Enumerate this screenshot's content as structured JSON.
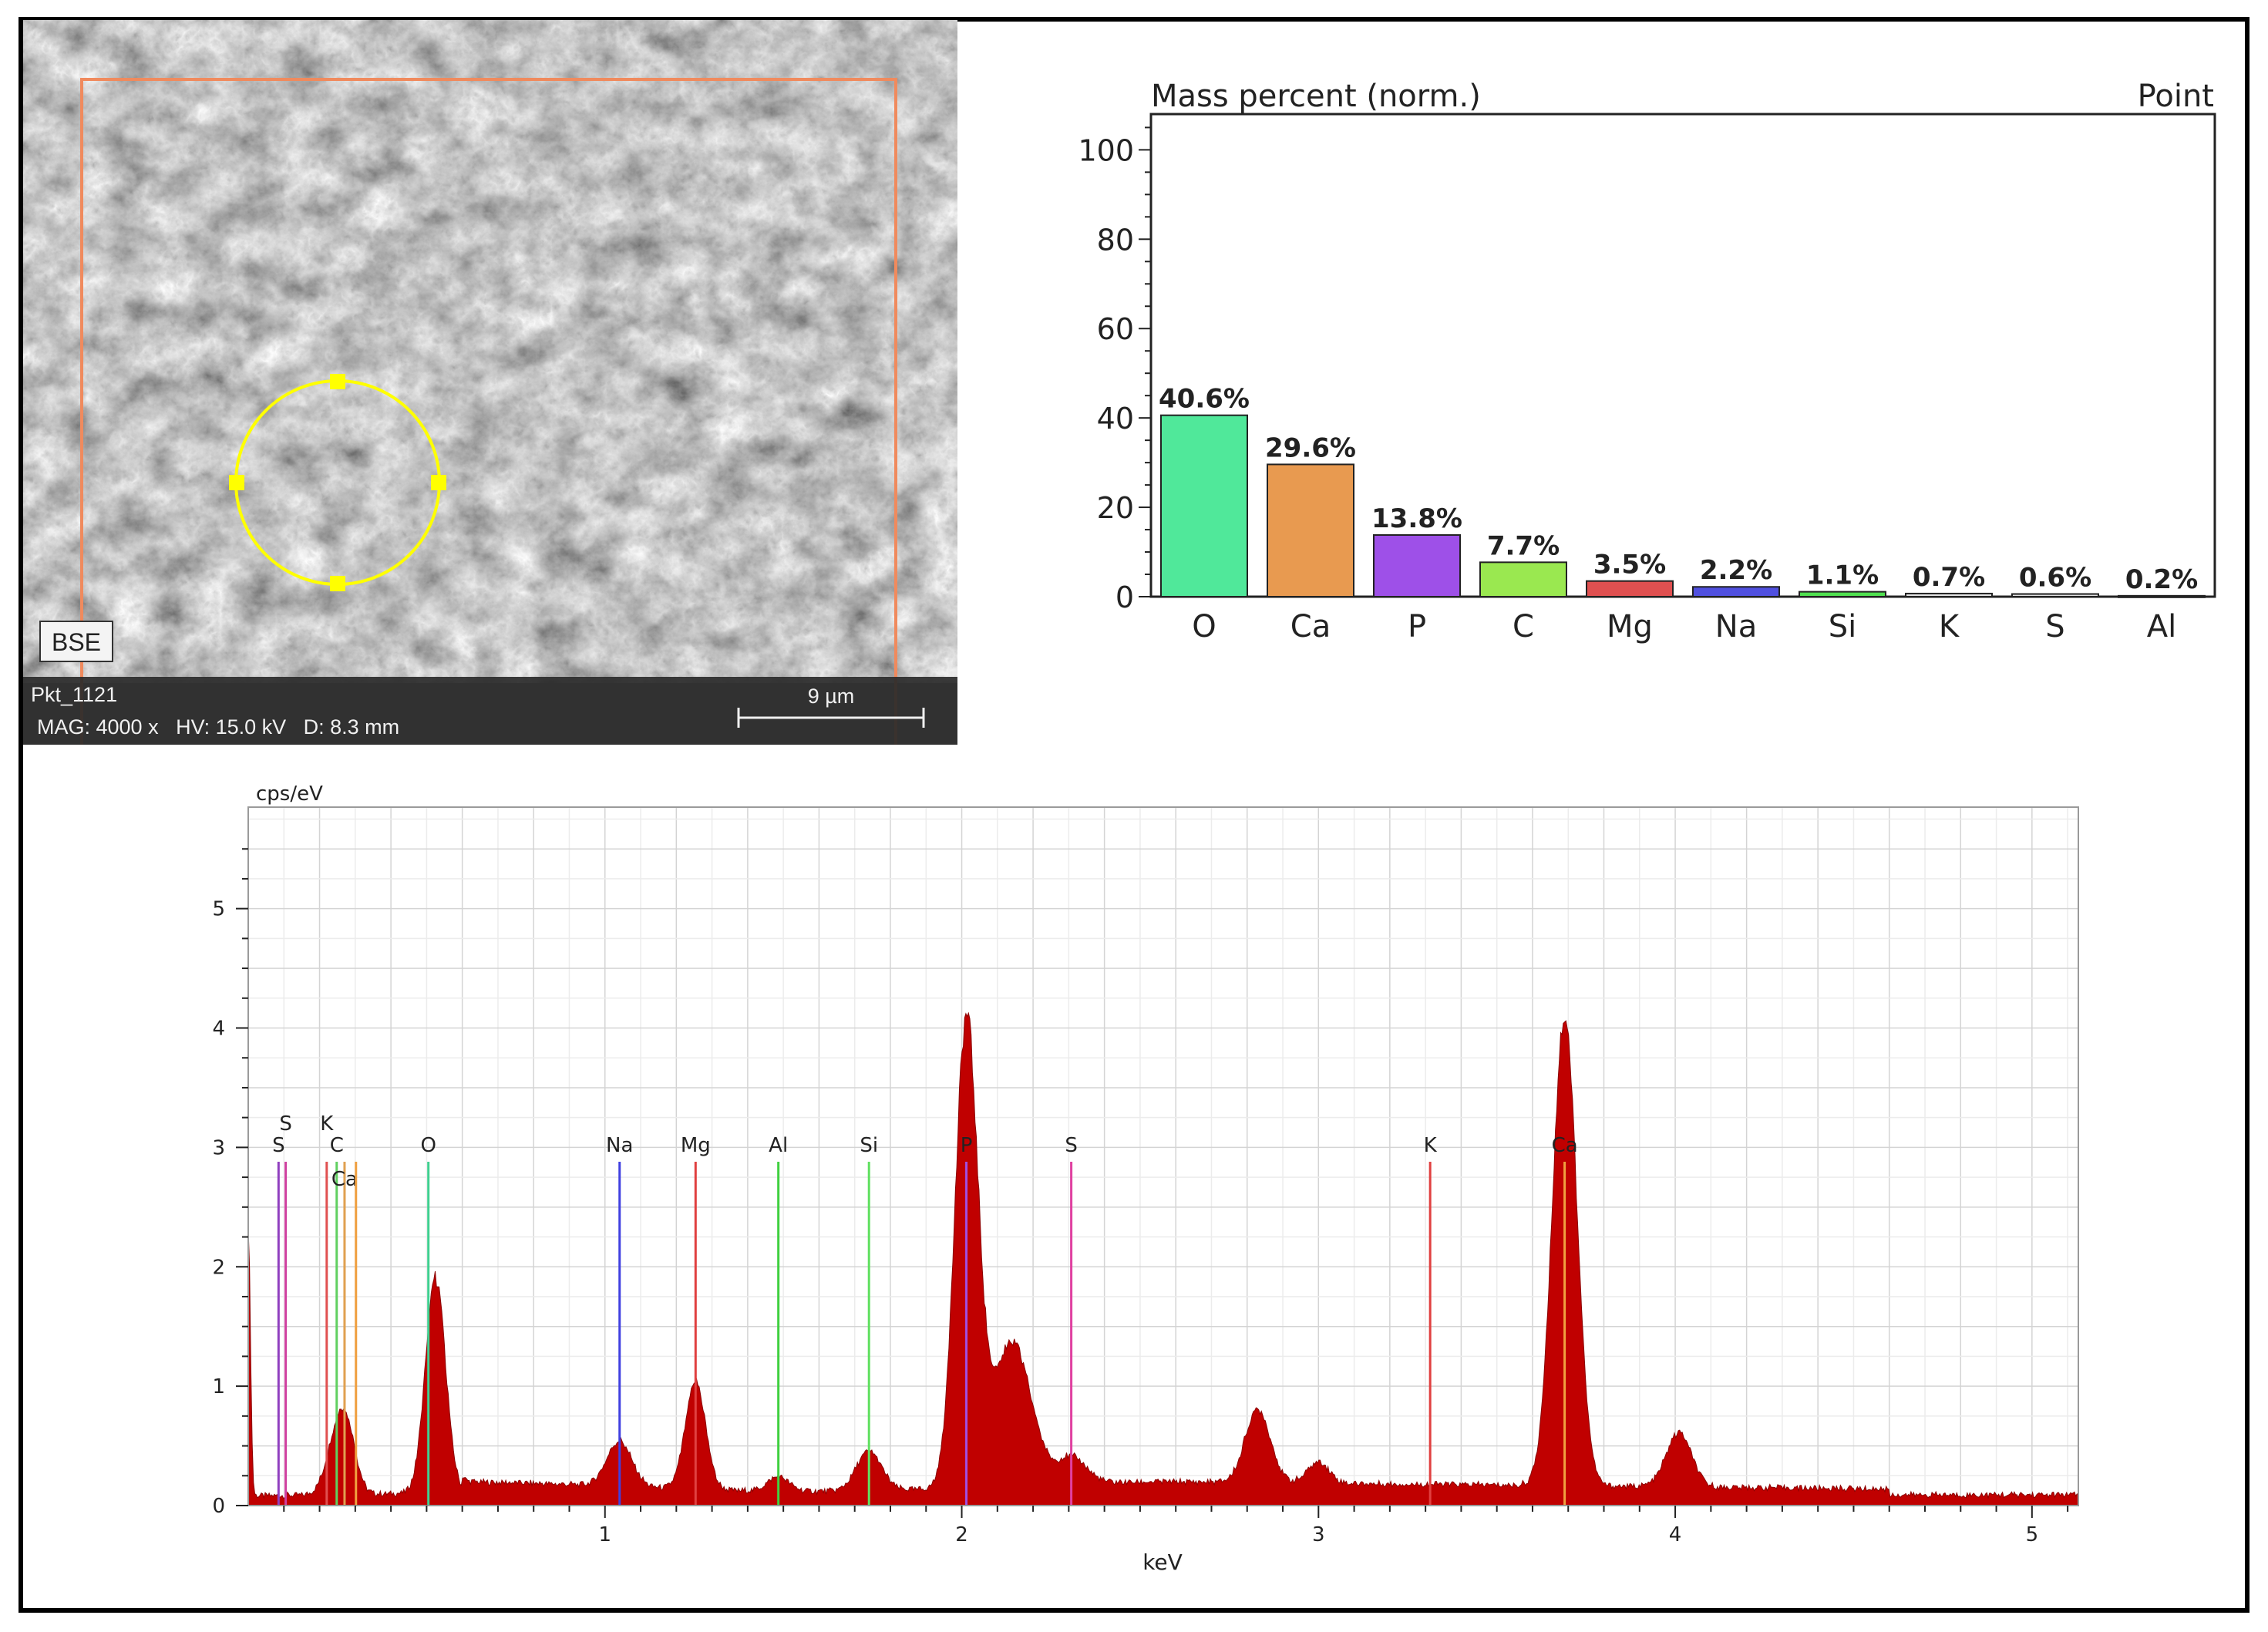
{
  "sem_image": {
    "detector_badge": "BSE",
    "point_name": "Pkt_1121",
    "info_line": "MAG: 4000 x   HV: 15.0 kV   D: 8.3 mm",
    "scale_bar_label": "9 µm",
    "colors": {
      "roi_rect": "#f08a5d",
      "point_circle": "#ffff00"
    }
  },
  "chart_data": [
    {
      "type": "bar",
      "title": "Mass percent (norm.)",
      "subtitle": "Point",
      "categories": [
        "O",
        "Ca",
        "P",
        "C",
        "Mg",
        "Na",
        "Si",
        "K",
        "S",
        "Al"
      ],
      "values": [
        40.6,
        29.6,
        13.8,
        7.7,
        3.5,
        2.2,
        1.1,
        0.7,
        0.6,
        0.2
      ],
      "data_labels": [
        "40.6%",
        "29.6%",
        "13.8%",
        "7.7%",
        "3.5%",
        "2.2%",
        "1.1%",
        "0.7%",
        "0.6%",
        "0.2%"
      ],
      "colors": [
        "#50e89a",
        "#e89a50",
        "#9e50e8",
        "#9ae850",
        "#e05050",
        "#5050e0",
        "#50e050",
        "#e0e0e0",
        "#e0e0e0",
        "#e0e0e0"
      ],
      "ylim": [
        0,
        108
      ],
      "yticks": [
        0,
        20,
        40,
        60,
        80,
        100
      ],
      "grid": false,
      "legend": "none"
    },
    {
      "type": "area",
      "ylabel": "cps/eV",
      "xlabel": "keV",
      "xlim": [
        0,
        5.13
      ],
      "ylim": [
        0,
        5.85
      ],
      "xticks": [
        1,
        2,
        3,
        4,
        5
      ],
      "yticks": [
        0,
        1,
        2,
        3,
        4,
        5
      ],
      "grid": true,
      "fill_color": "#c00000",
      "peaks": [
        {
          "x": 0.0,
          "height": 2.3,
          "width": 0.006
        },
        {
          "x": 0.25,
          "height": 0.5,
          "width": 0.03
        },
        {
          "x": 0.28,
          "height": 0.35,
          "width": 0.025
        },
        {
          "x": 0.525,
          "height": 1.8,
          "width": 0.028
        },
        {
          "x": 1.04,
          "height": 0.38,
          "width": 0.035
        },
        {
          "x": 1.254,
          "height": 0.9,
          "width": 0.028
        },
        {
          "x": 1.486,
          "height": 0.12,
          "width": 0.03
        },
        {
          "x": 1.74,
          "height": 0.33,
          "width": 0.035
        },
        {
          "x": 2.013,
          "height": 3.88,
          "width": 0.032
        },
        {
          "x": 2.14,
          "height": 1.2,
          "width": 0.055
        },
        {
          "x": 2.31,
          "height": 0.22,
          "width": 0.04
        },
        {
          "x": 2.83,
          "height": 0.62,
          "width": 0.035
        },
        {
          "x": 3.0,
          "height": 0.18,
          "width": 0.03
        },
        {
          "x": 3.69,
          "height": 3.95,
          "width": 0.034
        },
        {
          "x": 4.01,
          "height": 0.45,
          "width": 0.035
        }
      ],
      "element_lines": [
        {
          "label": "S",
          "x": 0.085,
          "color": "#9040c0",
          "label_row": 0
        },
        {
          "label": "S",
          "x": 0.105,
          "color": "#d040a0",
          "label_row": -1
        },
        {
          "label": "K",
          "x": 0.22,
          "color": "#e05050",
          "label_row": -1
        },
        {
          "label": "C",
          "x": 0.248,
          "color": "#60d060",
          "label_row": 0
        },
        {
          "label": "Ca",
          "x": 0.27,
          "color": "#e0a050",
          "label_row": 1
        },
        {
          "label": "",
          "x": 0.302,
          "color": "#f0a040",
          "label_row": -1
        },
        {
          "label": "O",
          "x": 0.505,
          "color": "#40d090",
          "label_row": 0
        },
        {
          "label": "Na",
          "x": 1.041,
          "color": "#4040e0",
          "label_row": 0
        },
        {
          "label": "Mg",
          "x": 1.254,
          "color": "#e04040",
          "label_row": 0
        },
        {
          "label": "Al",
          "x": 1.486,
          "color": "#40d040",
          "label_row": 0
        },
        {
          "label": "Si",
          "x": 1.74,
          "color": "#60e060",
          "label_row": 0
        },
        {
          "label": "P",
          "x": 2.013,
          "color": "#a050e0",
          "label_row": 0
        },
        {
          "label": "S",
          "x": 2.307,
          "color": "#e040a0",
          "label_row": 0
        },
        {
          "label": "K",
          "x": 3.313,
          "color": "#e04040",
          "label_row": 0
        },
        {
          "label": "Ca",
          "x": 3.69,
          "color": "#f0a040",
          "label_row": 0
        }
      ]
    }
  ]
}
